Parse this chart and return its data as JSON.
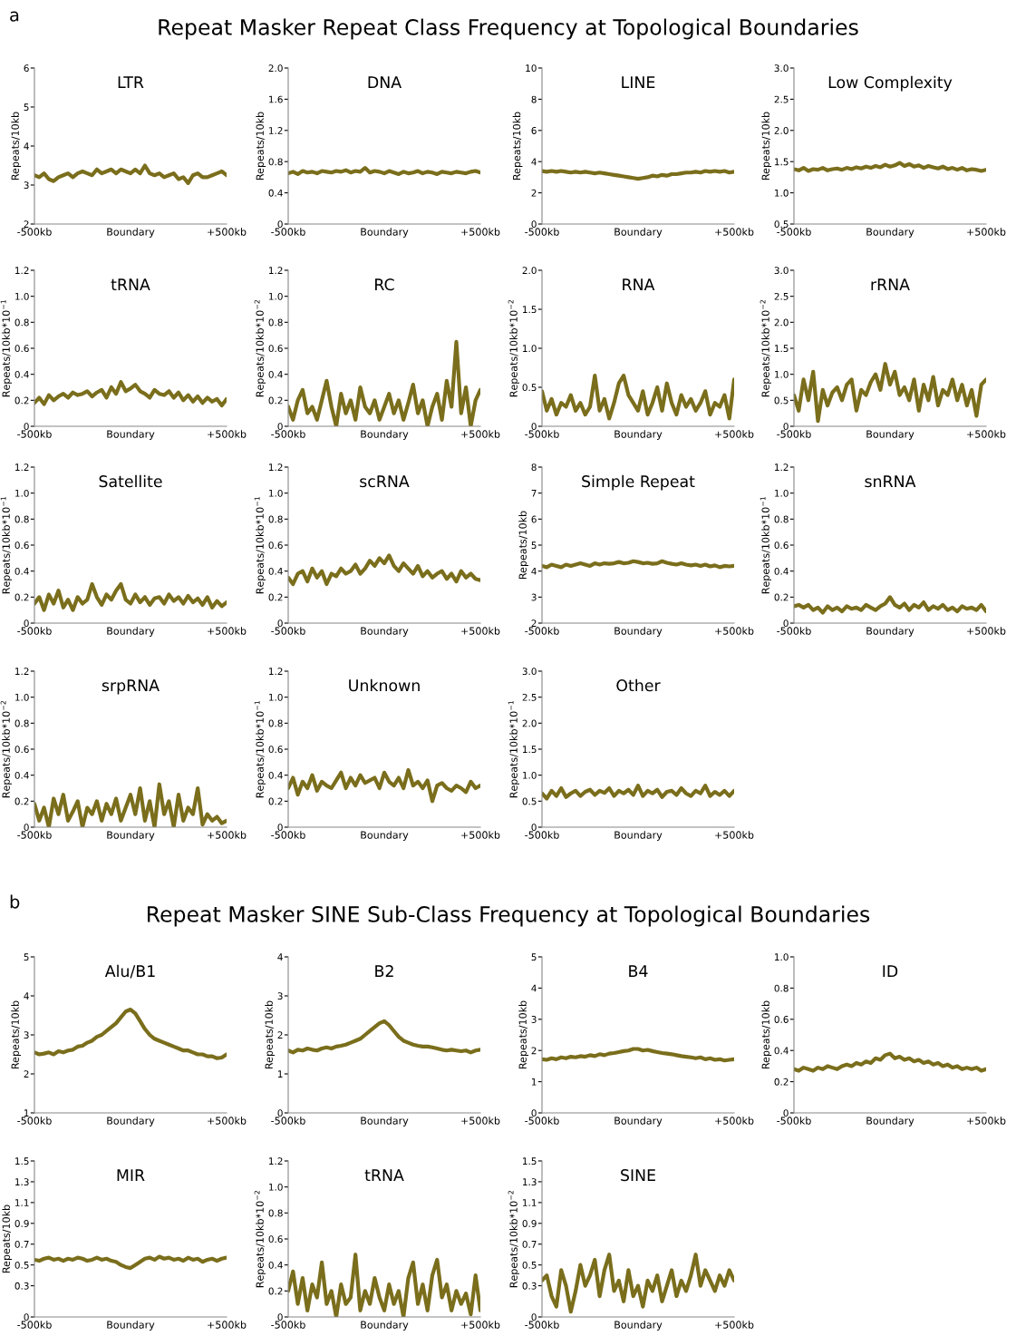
{
  "chart_data": [
    {
      "type": "line",
      "title": "LTR",
      "annotations": [
        "a",
        "Repeat Masker Repeat Class Frequency at Topological Boundaries"
      ],
      "ylabel": "Repeats/10kb",
      "color": "#7a6e1c",
      "xlim": [
        -500,
        500
      ],
      "xticks": [
        {
          "value": -500,
          "label": "-500kb"
        },
        {
          "value": 0,
          "label": "Boundary"
        },
        {
          "value": 500,
          "label": "+500kb"
        }
      ],
      "ylim": [
        2,
        6
      ],
      "yticks": [
        2,
        3,
        4,
        5,
        6
      ],
      "x": [
        -500,
        -475,
        -450,
        -425,
        -400,
        -375,
        -350,
        -325,
        -300,
        -275,
        -250,
        -225,
        -200,
        -175,
        -150,
        -125,
        -100,
        -75,
        -50,
        -25,
        0,
        25,
        50,
        75,
        100,
        125,
        150,
        175,
        200,
        225,
        250,
        275,
        300,
        325,
        350,
        375,
        400,
        425,
        450,
        475,
        500
      ],
      "values": [
        3.25,
        3.2,
        3.3,
        3.15,
        3.1,
        3.2,
        3.25,
        3.3,
        3.2,
        3.3,
        3.35,
        3.3,
        3.25,
        3.4,
        3.3,
        3.35,
        3.4,
        3.3,
        3.4,
        3.35,
        3.3,
        3.4,
        3.3,
        3.5,
        3.3,
        3.25,
        3.3,
        3.2,
        3.25,
        3.3,
        3.15,
        3.2,
        3.05,
        3.25,
        3.3,
        3.2,
        3.2,
        3.25,
        3.3,
        3.35,
        3.25
      ]
    },
    {
      "type": "line",
      "title": "DNA",
      "ylabel": "Repeats/10kb",
      "color": "#7a6e1c",
      "xlim": [
        -500,
        500
      ],
      "xticks": [
        {
          "value": -500,
          "label": "-500kb"
        },
        {
          "value": 0,
          "label": "Boundary"
        },
        {
          "value": 500,
          "label": "+500kb"
        }
      ],
      "ylim": [
        0,
        2
      ],
      "yticks": [
        0,
        0.4,
        0.8,
        1.2,
        1.6,
        {
          "value": 2,
          "label": "2.0"
        }
      ],
      "x": [
        -500,
        -475,
        -450,
        -425,
        -400,
        -375,
        -350,
        -325,
        -300,
        -275,
        -250,
        -225,
        -200,
        -175,
        -150,
        -125,
        -100,
        -75,
        -50,
        -25,
        0,
        25,
        50,
        75,
        100,
        125,
        150,
        175,
        200,
        225,
        250,
        275,
        300,
        325,
        350,
        375,
        400,
        425,
        450,
        475,
        500
      ],
      "values": [
        0.65,
        0.67,
        0.64,
        0.68,
        0.66,
        0.67,
        0.65,
        0.68,
        0.67,
        0.66,
        0.68,
        0.67,
        0.69,
        0.66,
        0.68,
        0.67,
        0.72,
        0.66,
        0.68,
        0.67,
        0.65,
        0.68,
        0.66,
        0.64,
        0.67,
        0.65,
        0.66,
        0.68,
        0.65,
        0.67,
        0.66,
        0.64,
        0.67,
        0.66,
        0.65,
        0.67,
        0.66,
        0.65,
        0.67,
        0.68,
        0.66
      ]
    },
    {
      "type": "line",
      "title": "LINE",
      "ylabel": "Repeats/10kb",
      "color": "#7a6e1c",
      "xlim": [
        -500,
        500
      ],
      "xticks": [
        {
          "value": -500,
          "label": "-500kb"
        },
        {
          "value": 0,
          "label": "Boundary"
        },
        {
          "value": 500,
          "label": "+500kb"
        }
      ],
      "ylim": [
        0,
        10
      ],
      "yticks": [
        0,
        2,
        4,
        6,
        8,
        10
      ],
      "x": [
        -500,
        -475,
        -450,
        -425,
        -400,
        -375,
        -350,
        -325,
        -300,
        -275,
        -250,
        -225,
        -200,
        -175,
        -150,
        -125,
        -100,
        -75,
        -50,
        -25,
        0,
        25,
        50,
        75,
        100,
        125,
        150,
        175,
        200,
        225,
        250,
        275,
        300,
        325,
        350,
        375,
        400,
        425,
        450,
        475,
        500
      ],
      "values": [
        3.4,
        3.35,
        3.4,
        3.35,
        3.4,
        3.35,
        3.3,
        3.35,
        3.3,
        3.35,
        3.3,
        3.25,
        3.3,
        3.25,
        3.2,
        3.15,
        3.1,
        3.05,
        3.0,
        2.95,
        2.9,
        2.95,
        3.0,
        3.1,
        3.05,
        3.15,
        3.1,
        3.2,
        3.2,
        3.25,
        3.3,
        3.3,
        3.35,
        3.3,
        3.4,
        3.35,
        3.4,
        3.35,
        3.4,
        3.3,
        3.35
      ]
    },
    {
      "type": "line",
      "title": "Low Complexity",
      "ylabel": "Repeats/10kb",
      "color": "#7a6e1c",
      "xlim": [
        -500,
        500
      ],
      "xticks": [
        {
          "value": -500,
          "label": "-500kb"
        },
        {
          "value": 0,
          "label": "Boundary"
        },
        {
          "value": 500,
          "label": "+500kb"
        }
      ],
      "ylim": [
        0.5,
        3
      ],
      "yticks": [
        0.5,
        {
          "value": 1,
          "label": "1.0"
        },
        1.5,
        {
          "value": 2,
          "label": "2.0"
        },
        2.5,
        {
          "value": 3,
          "label": "3.0"
        }
      ],
      "x": [
        -500,
        -475,
        -450,
        -425,
        -400,
        -375,
        -350,
        -325,
        -300,
        -275,
        -250,
        -225,
        -200,
        -175,
        -150,
        -125,
        -100,
        -75,
        -50,
        -25,
        0,
        25,
        50,
        75,
        100,
        125,
        150,
        175,
        200,
        225,
        250,
        275,
        300,
        325,
        350,
        375,
        400,
        425,
        450,
        475,
        500
      ],
      "values": [
        1.38,
        1.36,
        1.4,
        1.35,
        1.38,
        1.37,
        1.4,
        1.36,
        1.38,
        1.39,
        1.37,
        1.4,
        1.38,
        1.41,
        1.39,
        1.42,
        1.4,
        1.43,
        1.41,
        1.45,
        1.42,
        1.44,
        1.48,
        1.43,
        1.46,
        1.42,
        1.44,
        1.4,
        1.43,
        1.41,
        1.39,
        1.42,
        1.38,
        1.4,
        1.37,
        1.4,
        1.36,
        1.38,
        1.37,
        1.35,
        1.37
      ]
    },
    {
      "type": "line",
      "title": "tRNA",
      "ylabel": "Repeats/10kb*10$^{−1}$",
      "color": "#7a6e1c",
      "xlim": [
        -500,
        500
      ],
      "xticks": [
        {
          "value": -500,
          "label": "-500kb"
        },
        {
          "value": 0,
          "label": "Boundary"
        },
        {
          "value": 500,
          "label": "+500kb"
        }
      ],
      "ylim": [
        0,
        1.2
      ],
      "yticks": [
        0,
        0.2,
        0.4,
        0.6,
        0.8,
        {
          "value": 1,
          "label": "1.0"
        },
        1.2
      ],
      "x": [
        -500,
        -475,
        -450,
        -425,
        -400,
        -375,
        -350,
        -325,
        -300,
        -275,
        -250,
        -225,
        -200,
        -175,
        -150,
        -125,
        -100,
        -75,
        -50,
        -25,
        0,
        25,
        50,
        75,
        100,
        125,
        150,
        175,
        200,
        225,
        250,
        275,
        300,
        325,
        350,
        375,
        400,
        425,
        450,
        475,
        500
      ],
      "values": [
        0.18,
        0.22,
        0.17,
        0.24,
        0.2,
        0.23,
        0.25,
        0.22,
        0.26,
        0.24,
        0.25,
        0.27,
        0.23,
        0.26,
        0.28,
        0.22,
        0.3,
        0.25,
        0.34,
        0.27,
        0.29,
        0.32,
        0.27,
        0.25,
        0.22,
        0.28,
        0.25,
        0.24,
        0.27,
        0.22,
        0.26,
        0.2,
        0.24,
        0.19,
        0.23,
        0.18,
        0.22,
        0.19,
        0.21,
        0.16,
        0.21
      ]
    },
    {
      "type": "line",
      "title": "RC",
      "ylabel": "Repeats/10kb*10$^{−2}$",
      "color": "#7a6e1c",
      "xlim": [
        -500,
        500
      ],
      "xticks": [
        {
          "value": -500,
          "label": "-500kb"
        },
        {
          "value": 0,
          "label": "Boundary"
        },
        {
          "value": 500,
          "label": "+500kb"
        }
      ],
      "ylim": [
        0,
        1.2
      ],
      "yticks": [
        0,
        0.2,
        0.4,
        0.6,
        0.8,
        {
          "value": 1,
          "label": "1.0"
        },
        1.2
      ],
      "x": [
        -500,
        -475,
        -450,
        -425,
        -400,
        -375,
        -350,
        -325,
        -300,
        -275,
        -250,
        -225,
        -200,
        -175,
        -150,
        -125,
        -100,
        -75,
        -50,
        -25,
        0,
        25,
        50,
        75,
        100,
        125,
        150,
        175,
        200,
        225,
        250,
        275,
        300,
        325,
        350,
        375,
        400,
        425,
        450,
        475,
        500
      ],
      "values": [
        0.15,
        0.05,
        0.2,
        0.28,
        0.1,
        0.15,
        0.05,
        0.2,
        0.35,
        0.15,
        0.0,
        0.25,
        0.1,
        0.2,
        0.05,
        0.3,
        0.15,
        0.1,
        0.2,
        0.05,
        0.15,
        0.25,
        0.1,
        0.2,
        0.05,
        0.18,
        0.32,
        0.1,
        0.2,
        0.0,
        0.15,
        0.25,
        0.05,
        0.35,
        0.15,
        0.65,
        0.1,
        0.3,
        0.0,
        0.2,
        0.28
      ]
    },
    {
      "type": "line",
      "title": "RNA",
      "ylabel": "Repeats/10kb*10$^{−2}$",
      "color": "#7a6e1c",
      "xlim": [
        -500,
        500
      ],
      "xticks": [
        {
          "value": -500,
          "label": "-500kb"
        },
        {
          "value": 0,
          "label": "Boundary"
        },
        {
          "value": 500,
          "label": "+500kb"
        }
      ],
      "ylim": [
        0,
        2
      ],
      "yticks": [
        0,
        0.5,
        {
          "value": 1,
          "label": "1.0"
        },
        1.5,
        {
          "value": 2,
          "label": "2.0"
        }
      ],
      "x": [
        -500,
        -475,
        -450,
        -425,
        -400,
        -375,
        -350,
        -325,
        -300,
        -275,
        -250,
        -225,
        -200,
        -175,
        -150,
        -125,
        -100,
        -75,
        -50,
        -25,
        0,
        25,
        50,
        75,
        100,
        125,
        150,
        175,
        200,
        225,
        250,
        275,
        300,
        325,
        350,
        375,
        400,
        425,
        450,
        475,
        500
      ],
      "values": [
        0.45,
        0.2,
        0.35,
        0.15,
        0.3,
        0.25,
        0.4,
        0.2,
        0.3,
        0.15,
        0.25,
        0.65,
        0.2,
        0.35,
        0.1,
        0.3,
        0.55,
        0.65,
        0.4,
        0.3,
        0.2,
        0.45,
        0.15,
        0.3,
        0.5,
        0.2,
        0.55,
        0.3,
        0.15,
        0.4,
        0.25,
        0.35,
        0.2,
        0.3,
        0.45,
        0.15,
        0.3,
        0.25,
        0.4,
        0.1,
        0.6
      ]
    },
    {
      "type": "line",
      "title": "rRNA",
      "ylabel": "Repeats/10kb*10$^{−2}$",
      "color": "#7a6e1c",
      "xlim": [
        -500,
        500
      ],
      "xticks": [
        {
          "value": -500,
          "label": "-500kb"
        },
        {
          "value": 0,
          "label": "Boundary"
        },
        {
          "value": 500,
          "label": "+500kb"
        }
      ],
      "ylim": [
        0,
        3
      ],
      "yticks": [
        0,
        0.5,
        {
          "value": 1,
          "label": "1.0"
        },
        1.5,
        {
          "value": 2,
          "label": "2.0"
        },
        2.5,
        {
          "value": 3,
          "label": "3.0"
        }
      ],
      "x": [
        -500,
        -475,
        -450,
        -425,
        -400,
        -375,
        -350,
        -325,
        -300,
        -275,
        -250,
        -225,
        -200,
        -175,
        -150,
        -125,
        -100,
        -75,
        -50,
        -25,
        0,
        25,
        50,
        75,
        100,
        125,
        150,
        175,
        200,
        225,
        250,
        275,
        300,
        325,
        350,
        375,
        400,
        425,
        450,
        475,
        500
      ],
      "values": [
        0.6,
        0.3,
        0.9,
        0.5,
        1.05,
        0.1,
        0.7,
        0.4,
        0.65,
        0.75,
        0.5,
        0.8,
        0.9,
        0.3,
        0.7,
        0.6,
        0.85,
        1.0,
        0.7,
        1.2,
        0.8,
        1.05,
        0.6,
        0.75,
        0.5,
        0.9,
        0.3,
        0.8,
        0.5,
        0.95,
        0.4,
        0.7,
        0.6,
        0.9,
        0.5,
        0.8,
        0.4,
        0.7,
        0.2,
        0.8,
        0.9
      ]
    },
    {
      "type": "line",
      "title": "Satellite",
      "ylabel": "Repeats/10kb*10$^{−1}$",
      "color": "#7a6e1c",
      "xlim": [
        -500,
        500
      ],
      "xticks": [
        {
          "value": -500,
          "label": "-500kb"
        },
        {
          "value": 0,
          "label": "Boundary"
        },
        {
          "value": 500,
          "label": "+500kb"
        }
      ],
      "ylim": [
        0,
        1.2
      ],
      "yticks": [
        0,
        0.2,
        0.4,
        0.6,
        0.8,
        {
          "value": 1,
          "label": "1.0"
        },
        1.2
      ],
      "x": [
        -500,
        -475,
        -450,
        -425,
        -400,
        -375,
        -350,
        -325,
        -300,
        -275,
        -250,
        -225,
        -200,
        -175,
        -150,
        -125,
        -100,
        -75,
        -50,
        -25,
        0,
        25,
        50,
        75,
        100,
        125,
        150,
        175,
        200,
        225,
        250,
        275,
        300,
        325,
        350,
        375,
        400,
        425,
        450,
        475,
        500
      ],
      "values": [
        0.15,
        0.2,
        0.1,
        0.22,
        0.15,
        0.25,
        0.12,
        0.18,
        0.1,
        0.2,
        0.15,
        0.18,
        0.3,
        0.2,
        0.14,
        0.22,
        0.18,
        0.25,
        0.3,
        0.18,
        0.15,
        0.22,
        0.16,
        0.2,
        0.14,
        0.19,
        0.2,
        0.15,
        0.22,
        0.17,
        0.2,
        0.15,
        0.21,
        0.16,
        0.19,
        0.14,
        0.2,
        0.12,
        0.17,
        0.13,
        0.16
      ]
    },
    {
      "type": "line",
      "title": "scRNA",
      "ylabel": "Repeats/10kb*10$^{−1}$",
      "color": "#7a6e1c",
      "xlim": [
        -500,
        500
      ],
      "xticks": [
        {
          "value": -500,
          "label": "-500kb"
        },
        {
          "value": 0,
          "label": "Boundary"
        },
        {
          "value": 500,
          "label": "+500kb"
        }
      ],
      "ylim": [
        0,
        1.2
      ],
      "yticks": [
        0,
        0.2,
        0.4,
        0.6,
        0.8,
        {
          "value": 1,
          "label": "1.0"
        },
        1.2
      ],
      "x": [
        -500,
        -475,
        -450,
        -425,
        -400,
        -375,
        -350,
        -325,
        -300,
        -275,
        -250,
        -225,
        -200,
        -175,
        -150,
        -125,
        -100,
        -75,
        -50,
        -25,
        0,
        25,
        50,
        75,
        100,
        125,
        150,
        175,
        200,
        225,
        250,
        275,
        300,
        325,
        350,
        375,
        400,
        425,
        450,
        475,
        500
      ],
      "values": [
        0.35,
        0.3,
        0.38,
        0.4,
        0.32,
        0.42,
        0.35,
        0.4,
        0.3,
        0.38,
        0.36,
        0.42,
        0.38,
        0.4,
        0.45,
        0.38,
        0.42,
        0.48,
        0.44,
        0.5,
        0.46,
        0.52,
        0.44,
        0.4,
        0.46,
        0.42,
        0.38,
        0.44,
        0.36,
        0.4,
        0.35,
        0.38,
        0.4,
        0.34,
        0.38,
        0.32,
        0.4,
        0.35,
        0.38,
        0.34,
        0.33
      ]
    },
    {
      "type": "line",
      "title": "Simple Repeat",
      "ylabel": "Repeats/10kb",
      "color": "#7a6e1c",
      "xlim": [
        -500,
        500
      ],
      "xticks": [
        {
          "value": -500,
          "label": "-500kb"
        },
        {
          "value": 0,
          "label": "Boundary"
        },
        {
          "value": 500,
          "label": "+500kb"
        }
      ],
      "ylim": [
        2,
        8
      ],
      "yticks": [
        2,
        3,
        4,
        5,
        6,
        7,
        8
      ],
      "x": [
        -500,
        -475,
        -450,
        -425,
        -400,
        -375,
        -350,
        -325,
        -300,
        -275,
        -250,
        -225,
        -200,
        -175,
        -150,
        -125,
        -100,
        -75,
        -50,
        -25,
        0,
        25,
        50,
        75,
        100,
        125,
        150,
        175,
        200,
        225,
        250,
        275,
        300,
        325,
        350,
        375,
        400,
        425,
        450,
        475,
        500
      ],
      "values": [
        4.2,
        4.15,
        4.25,
        4.2,
        4.15,
        4.25,
        4.2,
        4.25,
        4.3,
        4.25,
        4.2,
        4.3,
        4.25,
        4.3,
        4.28,
        4.3,
        4.35,
        4.3,
        4.32,
        4.38,
        4.35,
        4.3,
        4.32,
        4.28,
        4.3,
        4.38,
        4.32,
        4.28,
        4.25,
        4.3,
        4.25,
        4.22,
        4.25,
        4.2,
        4.25,
        4.18,
        4.22,
        4.15,
        4.2,
        4.18,
        4.2
      ]
    },
    {
      "type": "line",
      "title": "snRNA",
      "ylabel": "Repeats/10kb*10$^{−1}$",
      "color": "#7a6e1c",
      "xlim": [
        -500,
        500
      ],
      "xticks": [
        {
          "value": -500,
          "label": "-500kb"
        },
        {
          "value": 0,
          "label": "Boundary"
        },
        {
          "value": 500,
          "label": "+500kb"
        }
      ],
      "ylim": [
        0,
        1.2
      ],
      "yticks": [
        0,
        0.2,
        0.4,
        0.6,
        0.8,
        {
          "value": 1,
          "label": "1.0"
        },
        1.2
      ],
      "x": [
        -500,
        -475,
        -450,
        -425,
        -400,
        -375,
        -350,
        -325,
        -300,
        -275,
        -250,
        -225,
        -200,
        -175,
        -150,
        -125,
        -100,
        -75,
        -50,
        -25,
        0,
        25,
        50,
        75,
        100,
        125,
        150,
        175,
        200,
        225,
        250,
        275,
        300,
        325,
        350,
        375,
        400,
        425,
        450,
        475,
        500
      ],
      "values": [
        0.13,
        0.14,
        0.12,
        0.14,
        0.1,
        0.12,
        0.08,
        0.13,
        0.1,
        0.12,
        0.09,
        0.13,
        0.11,
        0.12,
        0.1,
        0.14,
        0.12,
        0.1,
        0.13,
        0.15,
        0.2,
        0.14,
        0.12,
        0.15,
        0.1,
        0.14,
        0.12,
        0.16,
        0.1,
        0.13,
        0.11,
        0.14,
        0.1,
        0.12,
        0.09,
        0.13,
        0.11,
        0.12,
        0.1,
        0.14,
        0.09
      ]
    },
    {
      "type": "line",
      "title": "srpRNA",
      "ylabel": "Repeats/10kb*10$^{−2}$",
      "color": "#7a6e1c",
      "xlim": [
        -500,
        500
      ],
      "xticks": [
        {
          "value": -500,
          "label": "-500kb"
        },
        {
          "value": 0,
          "label": "Boundary"
        },
        {
          "value": 500,
          "label": "+500kb"
        }
      ],
      "ylim": [
        0,
        1.2
      ],
      "yticks": [
        0,
        0.2,
        0.4,
        0.6,
        0.8,
        {
          "value": 1,
          "label": "1.0"
        },
        1.2
      ],
      "x": [
        -500,
        -475,
        -450,
        -425,
        -400,
        -375,
        -350,
        -325,
        -300,
        -275,
        -250,
        -225,
        -200,
        -175,
        -150,
        -125,
        -100,
        -75,
        -50,
        -25,
        0,
        25,
        50,
        75,
        100,
        125,
        150,
        175,
        200,
        225,
        250,
        275,
        300,
        325,
        350,
        375,
        400,
        425,
        450,
        475,
        500
      ],
      "values": [
        0.18,
        0.05,
        0.15,
        0.0,
        0.22,
        0.1,
        0.25,
        0.05,
        0.12,
        0.2,
        0.0,
        0.15,
        0.1,
        0.2,
        0.05,
        0.18,
        0.1,
        0.22,
        0.05,
        0.15,
        0.25,
        0.1,
        0.3,
        0.05,
        0.2,
        0.0,
        0.33,
        0.1,
        0.2,
        0.0,
        0.25,
        0.05,
        0.15,
        0.1,
        0.3,
        0.02,
        0.1,
        0.05,
        0.08,
        0.03,
        0.05
      ]
    },
    {
      "type": "line",
      "title": "Unknown",
      "ylabel": "Repeats/10kb*10$^{−1}$",
      "color": "#7a6e1c",
      "xlim": [
        -500,
        500
      ],
      "xticks": [
        {
          "value": -500,
          "label": "-500kb"
        },
        {
          "value": 0,
          "label": "Boundary"
        },
        {
          "value": 500,
          "label": "+500kb"
        }
      ],
      "ylim": [
        0,
        1.2
      ],
      "yticks": [
        0,
        0.2,
        0.4,
        0.6,
        0.8,
        {
          "value": 1,
          "label": "1.0"
        },
        1.2
      ],
      "x": [
        -500,
        -475,
        -450,
        -425,
        -400,
        -375,
        -350,
        -325,
        -300,
        -275,
        -250,
        -225,
        -200,
        -175,
        -150,
        -125,
        -100,
        -75,
        -50,
        -25,
        0,
        25,
        50,
        75,
        100,
        125,
        150,
        175,
        200,
        225,
        250,
        275,
        300,
        325,
        350,
        375,
        400,
        425,
        450,
        475,
        500
      ],
      "values": [
        0.3,
        0.38,
        0.25,
        0.35,
        0.3,
        0.4,
        0.28,
        0.35,
        0.32,
        0.3,
        0.36,
        0.42,
        0.3,
        0.38,
        0.32,
        0.4,
        0.34,
        0.36,
        0.38,
        0.3,
        0.42,
        0.35,
        0.32,
        0.38,
        0.3,
        0.44,
        0.32,
        0.35,
        0.3,
        0.36,
        0.2,
        0.32,
        0.34,
        0.3,
        0.28,
        0.32,
        0.3,
        0.27,
        0.35,
        0.3,
        0.32
      ]
    },
    {
      "type": "line",
      "title": "Other",
      "ylabel": "Repeats/10kb*10$^{−1}$",
      "color": "#7a6e1c",
      "xlim": [
        -500,
        500
      ],
      "xticks": [
        {
          "value": -500,
          "label": "-500kb"
        },
        {
          "value": 0,
          "label": "Boundary"
        },
        {
          "value": 500,
          "label": "+500kb"
        }
      ],
      "ylim": [
        0,
        3
      ],
      "yticks": [
        0,
        0.5,
        {
          "value": 1,
          "label": "1.0"
        },
        1.5,
        {
          "value": 2,
          "label": "2.0"
        },
        2.5,
        {
          "value": 3,
          "label": "3.0"
        }
      ],
      "x": [
        -500,
        -475,
        -450,
        -425,
        -400,
        -375,
        -350,
        -325,
        -300,
        -275,
        -250,
        -225,
        -200,
        -175,
        -150,
        -125,
        -100,
        -75,
        -50,
        -25,
        0,
        25,
        50,
        75,
        100,
        125,
        150,
        175,
        200,
        225,
        250,
        275,
        300,
        325,
        350,
        375,
        400,
        425,
        450,
        475,
        500
      ],
      "values": [
        0.65,
        0.55,
        0.7,
        0.6,
        0.75,
        0.58,
        0.65,
        0.7,
        0.6,
        0.68,
        0.72,
        0.62,
        0.7,
        0.66,
        0.75,
        0.6,
        0.7,
        0.65,
        0.72,
        0.62,
        0.8,
        0.6,
        0.7,
        0.65,
        0.72,
        0.58,
        0.68,
        0.7,
        0.62,
        0.75,
        0.65,
        0.6,
        0.7,
        0.65,
        0.8,
        0.6,
        0.68,
        0.62,
        0.7,
        0.6,
        0.7
      ]
    },
    {
      "type": "line",
      "title": "Alu/B1",
      "annotations": [
        "b",
        "Repeat Masker SINE Sub-Class Frequency at Topological Boundaries"
      ],
      "ylabel": "Repeats/10kb",
      "color": "#7a6e1c",
      "xlim": [
        -500,
        500
      ],
      "xticks": [
        {
          "value": -500,
          "label": "-500kb"
        },
        {
          "value": 0,
          "label": "Boundary"
        },
        {
          "value": 500,
          "label": "+500kb"
        }
      ],
      "ylim": [
        1,
        5
      ],
      "yticks": [
        1,
        2,
        3,
        4,
        5
      ],
      "x": [
        -500,
        -475,
        -450,
        -425,
        -400,
        -375,
        -350,
        -325,
        -300,
        -275,
        -250,
        -225,
        -200,
        -175,
        -150,
        -125,
        -100,
        -75,
        -50,
        -25,
        0,
        25,
        50,
        75,
        100,
        125,
        150,
        175,
        200,
        225,
        250,
        275,
        300,
        325,
        350,
        375,
        400,
        425,
        450,
        475,
        500
      ],
      "values": [
        2.55,
        2.5,
        2.52,
        2.55,
        2.5,
        2.58,
        2.55,
        2.6,
        2.62,
        2.7,
        2.72,
        2.8,
        2.85,
        2.95,
        3.0,
        3.1,
        3.2,
        3.3,
        3.45,
        3.6,
        3.65,
        3.55,
        3.35,
        3.15,
        3.0,
        2.9,
        2.85,
        2.8,
        2.75,
        2.7,
        2.65,
        2.6,
        2.6,
        2.55,
        2.5,
        2.5,
        2.45,
        2.45,
        2.4,
        2.42,
        2.5
      ]
    },
    {
      "type": "line",
      "title": "B2",
      "ylabel": "Repeats/10kb",
      "color": "#7a6e1c",
      "xlim": [
        -500,
        500
      ],
      "xticks": [
        {
          "value": -500,
          "label": "-500kb"
        },
        {
          "value": 0,
          "label": "Boundary"
        },
        {
          "value": 500,
          "label": "+500kb"
        }
      ],
      "ylim": [
        0,
        4
      ],
      "yticks": [
        0,
        1,
        2,
        3,
        4
      ],
      "x": [
        -500,
        -475,
        -450,
        -425,
        -400,
        -375,
        -350,
        -325,
        -300,
        -275,
        -250,
        -225,
        -200,
        -175,
        -150,
        -125,
        -100,
        -75,
        -50,
        -25,
        0,
        25,
        50,
        75,
        100,
        125,
        150,
        175,
        200,
        225,
        250,
        275,
        300,
        325,
        350,
        375,
        400,
        425,
        450,
        475,
        500
      ],
      "values": [
        1.6,
        1.55,
        1.62,
        1.6,
        1.65,
        1.62,
        1.6,
        1.65,
        1.68,
        1.65,
        1.7,
        1.72,
        1.75,
        1.8,
        1.85,
        1.9,
        2.0,
        2.1,
        2.2,
        2.3,
        2.35,
        2.25,
        2.1,
        1.95,
        1.85,
        1.8,
        1.75,
        1.72,
        1.7,
        1.7,
        1.68,
        1.65,
        1.62,
        1.6,
        1.62,
        1.6,
        1.58,
        1.6,
        1.55,
        1.6,
        1.62
      ]
    },
    {
      "type": "line",
      "title": "B4",
      "ylabel": "Repeats/10kb",
      "color": "#7a6e1c",
      "xlim": [
        -500,
        500
      ],
      "xticks": [
        {
          "value": -500,
          "label": "-500kb"
        },
        {
          "value": 0,
          "label": "Boundary"
        },
        {
          "value": 500,
          "label": "+500kb"
        }
      ],
      "ylim": [
        0,
        5
      ],
      "yticks": [
        0,
        1,
        2,
        3,
        4,
        5
      ],
      "x": [
        -500,
        -475,
        -450,
        -425,
        -400,
        -375,
        -350,
        -325,
        -300,
        -275,
        -250,
        -225,
        -200,
        -175,
        -150,
        -125,
        -100,
        -75,
        -50,
        -25,
        0,
        25,
        50,
        75,
        100,
        125,
        150,
        175,
        200,
        225,
        250,
        275,
        300,
        325,
        350,
        375,
        400,
        425,
        450,
        475,
        500
      ],
      "values": [
        1.72,
        1.7,
        1.75,
        1.72,
        1.78,
        1.75,
        1.8,
        1.78,
        1.82,
        1.8,
        1.85,
        1.82,
        1.88,
        1.85,
        1.9,
        1.92,
        1.95,
        1.98,
        2.0,
        2.05,
        2.05,
        2.0,
        2.02,
        1.98,
        1.95,
        1.92,
        1.9,
        1.88,
        1.85,
        1.82,
        1.8,
        1.78,
        1.75,
        1.78,
        1.72,
        1.75,
        1.7,
        1.72,
        1.68,
        1.7,
        1.72
      ]
    },
    {
      "type": "line",
      "title": "ID",
      "ylabel": "Repeats/10kb",
      "color": "#7a6e1c",
      "xlim": [
        -500,
        500
      ],
      "xticks": [
        {
          "value": -500,
          "label": "-500kb"
        },
        {
          "value": 0,
          "label": "Boundary"
        },
        {
          "value": 500,
          "label": "+500kb"
        }
      ],
      "ylim": [
        0,
        1
      ],
      "yticks": [
        0,
        0.2,
        0.4,
        0.6,
        0.8,
        {
          "value": 1,
          "label": "1.0"
        }
      ],
      "x": [
        -500,
        -475,
        -450,
        -425,
        -400,
        -375,
        -350,
        -325,
        -300,
        -275,
        -250,
        -225,
        -200,
        -175,
        -150,
        -125,
        -100,
        -75,
        -50,
        -25,
        0,
        25,
        50,
        75,
        100,
        125,
        150,
        175,
        200,
        225,
        250,
        275,
        300,
        325,
        350,
        375,
        400,
        425,
        450,
        475,
        500
      ],
      "values": [
        0.28,
        0.27,
        0.29,
        0.28,
        0.27,
        0.29,
        0.28,
        0.3,
        0.29,
        0.28,
        0.3,
        0.31,
        0.3,
        0.32,
        0.31,
        0.33,
        0.32,
        0.35,
        0.34,
        0.37,
        0.38,
        0.35,
        0.36,
        0.34,
        0.35,
        0.33,
        0.34,
        0.32,
        0.33,
        0.31,
        0.32,
        0.3,
        0.31,
        0.29,
        0.3,
        0.28,
        0.29,
        0.28,
        0.29,
        0.27,
        0.28
      ]
    },
    {
      "type": "line",
      "title": "MIR",
      "ylabel": "Repeats/10kb",
      "color": "#7a6e1c",
      "xlim": [
        -500,
        500
      ],
      "xticks": [
        {
          "value": -500,
          "label": "-500kb"
        },
        {
          "value": 0,
          "label": "Boundary"
        },
        {
          "value": 500,
          "label": "+500kb"
        }
      ],
      "ylim": [
        0,
        1.5
      ],
      "yticks": [
        0,
        0.3,
        0.5,
        0.7,
        0.9,
        1.1,
        1.3,
        1.5
      ],
      "x": [
        -500,
        -475,
        -450,
        -425,
        -400,
        -375,
        -350,
        -325,
        -300,
        -275,
        -250,
        -225,
        -200,
        -175,
        -150,
        -125,
        -100,
        -75,
        -50,
        -25,
        0,
        25,
        50,
        75,
        100,
        125,
        150,
        175,
        200,
        225,
        250,
        275,
        300,
        325,
        350,
        375,
        400,
        425,
        450,
        475,
        500
      ],
      "values": [
        0.55,
        0.54,
        0.56,
        0.57,
        0.55,
        0.56,
        0.54,
        0.56,
        0.55,
        0.57,
        0.56,
        0.54,
        0.55,
        0.57,
        0.55,
        0.56,
        0.54,
        0.53,
        0.5,
        0.48,
        0.47,
        0.5,
        0.53,
        0.56,
        0.57,
        0.55,
        0.58,
        0.56,
        0.57,
        0.55,
        0.56,
        0.54,
        0.57,
        0.55,
        0.56,
        0.53,
        0.55,
        0.56,
        0.54,
        0.56,
        0.57
      ]
    },
    {
      "type": "line",
      "title": "tRNA",
      "ylabel": "Repeats/10kb*10$^{−2}$",
      "color": "#7a6e1c",
      "xlim": [
        -500,
        500
      ],
      "xticks": [
        {
          "value": -500,
          "label": "-500kb"
        },
        {
          "value": 0,
          "label": "Boundary"
        },
        {
          "value": 500,
          "label": "+500kb"
        }
      ],
      "ylim": [
        0,
        1.2
      ],
      "yticks": [
        0,
        0.2,
        0.4,
        0.6,
        0.8,
        {
          "value": 1,
          "label": "1.0"
        },
        1.2
      ],
      "x": [
        -500,
        -475,
        -450,
        -425,
        -400,
        -375,
        -350,
        -325,
        -300,
        -275,
        -250,
        -225,
        -200,
        -175,
        -150,
        -125,
        -100,
        -75,
        -50,
        -25,
        0,
        25,
        50,
        75,
        100,
        125,
        150,
        175,
        200,
        225,
        250,
        275,
        300,
        325,
        350,
        375,
        400,
        425,
        450,
        475,
        500
      ],
      "values": [
        0.2,
        0.35,
        0.1,
        0.3,
        0.05,
        0.25,
        0.15,
        0.42,
        0.1,
        0.2,
        0.0,
        0.25,
        0.1,
        0.15,
        0.48,
        0.05,
        0.2,
        0.1,
        0.3,
        0.15,
        0.05,
        0.25,
        0.1,
        0.2,
        0.0,
        0.3,
        0.42,
        0.1,
        0.25,
        0.05,
        0.32,
        0.44,
        0.15,
        0.25,
        0.05,
        0.2,
        0.1,
        0.18,
        0.02,
        0.32,
        0.05
      ]
    },
    {
      "type": "line",
      "title": "SINE",
      "ylabel": "Repeats/10kb*10$^{−2}$",
      "color": "#7a6e1c",
      "xlim": [
        -500,
        500
      ],
      "xticks": [
        {
          "value": -500,
          "label": "-500kb"
        },
        {
          "value": 0,
          "label": "Boundary"
        },
        {
          "value": 500,
          "label": "+500kb"
        }
      ],
      "ylim": [
        0,
        1.5
      ],
      "yticks": [
        0,
        0.3,
        0.5,
        0.7,
        0.9,
        1.1,
        1.3,
        1.5
      ],
      "x": [
        -500,
        -475,
        -450,
        -425,
        -400,
        -375,
        -350,
        -325,
        -300,
        -275,
        -250,
        -225,
        -200,
        -175,
        -150,
        -125,
        -100,
        -75,
        -50,
        -25,
        0,
        25,
        50,
        75,
        100,
        125,
        150,
        175,
        200,
        225,
        250,
        275,
        300,
        325,
        350,
        375,
        400,
        425,
        450,
        475,
        500
      ],
      "values": [
        0.35,
        0.4,
        0.2,
        0.1,
        0.45,
        0.3,
        0.05,
        0.25,
        0.5,
        0.3,
        0.4,
        0.55,
        0.2,
        0.45,
        0.6,
        0.25,
        0.35,
        0.15,
        0.45,
        0.2,
        0.3,
        0.1,
        0.35,
        0.25,
        0.4,
        0.15,
        0.3,
        0.45,
        0.2,
        0.35,
        0.25,
        0.4,
        0.6,
        0.3,
        0.45,
        0.35,
        0.25,
        0.4,
        0.3,
        0.45,
        0.35
      ]
    }
  ]
}
